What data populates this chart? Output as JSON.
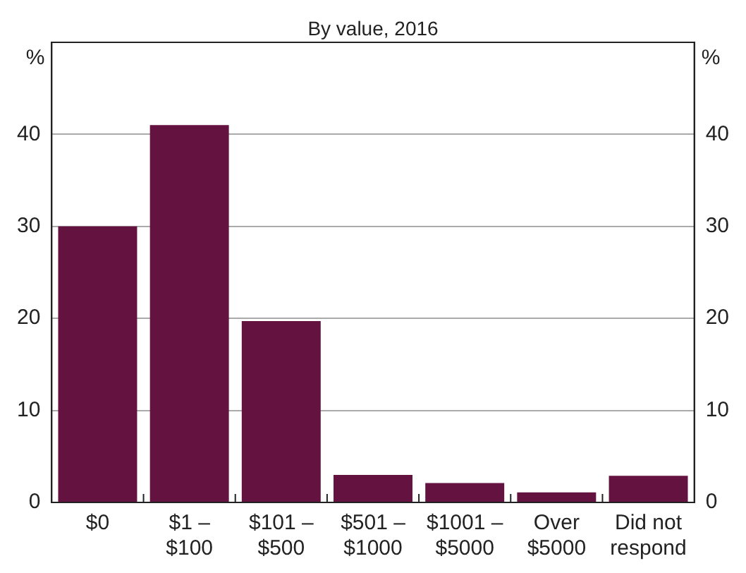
{
  "chart_data": {
    "type": "bar",
    "title": "By value, 2016",
    "categories": [
      "$0",
      "$1 – $100",
      "$101 – $500",
      "$501 – $1000",
      "$1001 – $5000",
      "Over $5000",
      "Did not respond"
    ],
    "values": [
      30,
      41,
      19.7,
      3.0,
      2.1,
      1.1,
      2.9
    ],
    "color": "#641240",
    "ylabel": "%",
    "y2label": "%",
    "ylim": [
      0,
      50
    ],
    "yticks": [
      0,
      10,
      20,
      30,
      40
    ],
    "y2lim": [
      0,
      50
    ],
    "y2ticks": [
      0,
      10,
      20,
      30,
      40
    ],
    "grid": "y",
    "legend": false
  }
}
